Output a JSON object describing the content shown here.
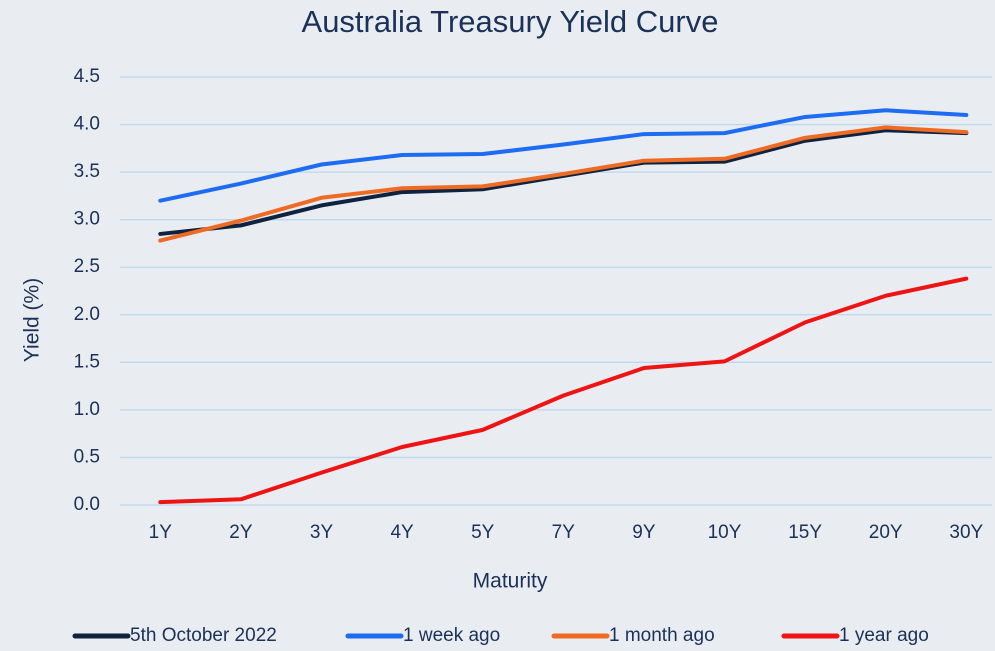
{
  "chart_data": {
    "type": "line",
    "title": "Australia Treasury Yield Curve",
    "x_label": "Maturity",
    "y_label": "Yield (%)",
    "categories": [
      "1Y",
      "2Y",
      "3Y",
      "4Y",
      "5Y",
      "7Y",
      "9Y",
      "10Y",
      "15Y",
      "20Y",
      "30Y"
    ],
    "series": [
      {
        "name": "5th October 2022",
        "color": "#0d2340",
        "values": [
          2.85,
          2.94,
          3.15,
          3.29,
          3.32,
          3.46,
          3.6,
          3.61,
          3.83,
          3.94,
          3.91
        ]
      },
      {
        "name": "1 week ago",
        "color": "#1d6cf2",
        "values": [
          3.2,
          3.38,
          3.58,
          3.68,
          3.69,
          3.79,
          3.9,
          3.91,
          4.08,
          4.15,
          4.1
        ]
      },
      {
        "name": "1 month ago",
        "color": "#ef6b24",
        "values": [
          2.78,
          2.99,
          3.23,
          3.33,
          3.35,
          3.48,
          3.62,
          3.64,
          3.86,
          3.97,
          3.92
        ]
      },
      {
        "name": "1 year ago",
        "color": "#ee1414",
        "values": [
          0.03,
          0.06,
          0.34,
          0.61,
          0.79,
          1.15,
          1.44,
          1.51,
          1.92,
          2.2,
          2.38
        ]
      }
    ],
    "ylim": [
      0,
      4.5
    ],
    "yticks": [
      {
        "value": 0,
        "label": "0.0"
      },
      0.5,
      {
        "value": 1,
        "label": "1.0"
      },
      1.5,
      {
        "value": 2,
        "label": "2.0"
      },
      2.5,
      {
        "value": 3,
        "label": "3.0"
      },
      3.5,
      {
        "value": 4,
        "label": "4.0"
      },
      4.5
    ],
    "grid": true,
    "legend": "bottom"
  }
}
